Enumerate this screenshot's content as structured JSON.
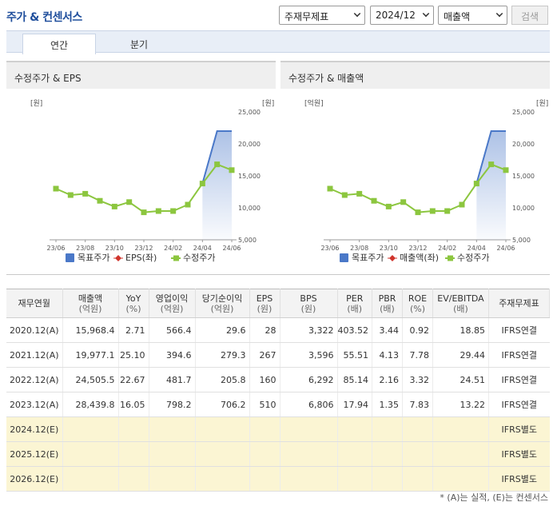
{
  "header": {
    "title": "주가 & 컨센서스",
    "statement_select": "주재무제표",
    "period_select": "2024/12",
    "metric_select": "매출액",
    "search_label": "검색"
  },
  "tabs": [
    {
      "label": "연간",
      "active": true
    },
    {
      "label": "분기",
      "active": false
    }
  ],
  "charts": [
    {
      "title": "수정주가 & EPS",
      "left_unit": "[원]",
      "right_unit": "[원]",
      "legend": [
        "목표주가",
        "EPS(좌)",
        "수정주가"
      ]
    },
    {
      "title": "수정주가 & 매출액",
      "left_unit": "[억원]",
      "right_unit": "[원]",
      "legend": [
        "목표주가",
        "매출액(좌)",
        "수정주가"
      ]
    }
  ],
  "chart_data": [
    {
      "type": "line",
      "title": "수정주가 & EPS",
      "x_ticks": [
        "23/06",
        "23/08",
        "23/10",
        "23/12",
        "24/02",
        "24/04",
        "24/06"
      ],
      "y_right_ticks": [
        "25,000",
        "20,000",
        "15,000",
        "10,000",
        "5,000"
      ],
      "ylim": [
        5000,
        25000
      ],
      "series": [
        {
          "name": "수정주가",
          "values": [
            13000,
            12000,
            12200,
            11100,
            10200,
            10900,
            9300,
            9500,
            9500,
            10500,
            13800,
            16800,
            15900
          ]
        },
        {
          "name": "목표주가",
          "values": [
            null,
            null,
            null,
            null,
            null,
            null,
            null,
            null,
            null,
            null,
            13800,
            22000,
            22000
          ]
        }
      ],
      "legend_position": "bottom",
      "colors": {
        "price": "#8cc63f",
        "target": "#4a78c8",
        "eps": "#d0342c"
      }
    },
    {
      "type": "line",
      "title": "수정주가 & 매출액",
      "x_ticks": [
        "23/06",
        "23/08",
        "23/10",
        "23/12",
        "24/02",
        "24/04",
        "24/06"
      ],
      "y_right_ticks": [
        "25,000",
        "20,000",
        "15,000",
        "10,000",
        "5,000"
      ],
      "ylim": [
        5000,
        25000
      ],
      "series": [
        {
          "name": "수정주가",
          "values": [
            13000,
            12000,
            12200,
            11100,
            10200,
            10900,
            9300,
            9500,
            9500,
            10500,
            13800,
            16800,
            15900
          ]
        },
        {
          "name": "목표주가",
          "values": [
            null,
            null,
            null,
            null,
            null,
            null,
            null,
            null,
            null,
            null,
            13800,
            22000,
            22000
          ]
        }
      ],
      "legend_position": "bottom",
      "colors": {
        "price": "#8cc63f",
        "target": "#4a78c8",
        "sales": "#d0342c"
      }
    }
  ],
  "table": {
    "headers": [
      {
        "label": "재무연월",
        "sub": ""
      },
      {
        "label": "매출액",
        "sub": "(억원)"
      },
      {
        "label": "YoY",
        "sub": "(%)"
      },
      {
        "label": "영업이익",
        "sub": "(억원)"
      },
      {
        "label": "당기순이익",
        "sub": "(억원)"
      },
      {
        "label": "EPS",
        "sub": "(원)"
      },
      {
        "label": "BPS",
        "sub": "(원)"
      },
      {
        "label": "PER",
        "sub": "(배)"
      },
      {
        "label": "PBR",
        "sub": "(배)"
      },
      {
        "label": "ROE",
        "sub": "(%)"
      },
      {
        "label": "EV/EBITDA",
        "sub": "(배)"
      },
      {
        "label": "주재무제표",
        "sub": ""
      }
    ],
    "rows": [
      {
        "estimate": false,
        "cells": [
          "2020.12(A)",
          "15,968.4",
          "2.71",
          "566.4",
          "29.6",
          "28",
          "3,322",
          "403.52",
          "3.44",
          "0.92",
          "18.85",
          "IFRS연결"
        ]
      },
      {
        "estimate": false,
        "cells": [
          "2021.12(A)",
          "19,977.1",
          "25.10",
          "394.6",
          "279.3",
          "267",
          "3,596",
          "55.51",
          "4.13",
          "7.78",
          "29.44",
          "IFRS연결"
        ]
      },
      {
        "estimate": false,
        "cells": [
          "2022.12(A)",
          "24,505.5",
          "22.67",
          "481.7",
          "205.8",
          "160",
          "6,292",
          "85.14",
          "2.16",
          "3.32",
          "24.51",
          "IFRS연결"
        ]
      },
      {
        "estimate": false,
        "cells": [
          "2023.12(A)",
          "28,439.8",
          "16.05",
          "798.2",
          "706.2",
          "510",
          "6,806",
          "17.94",
          "1.35",
          "7.83",
          "13.22",
          "IFRS연결"
        ]
      },
      {
        "estimate": true,
        "cells": [
          "2024.12(E)",
          "",
          "",
          "",
          "",
          "",
          "",
          "",
          "",
          "",
          "",
          "IFRS별도"
        ]
      },
      {
        "estimate": true,
        "cells": [
          "2025.12(E)",
          "",
          "",
          "",
          "",
          "",
          "",
          "",
          "",
          "",
          "",
          "IFRS별도"
        ]
      },
      {
        "estimate": true,
        "cells": [
          "2026.12(E)",
          "",
          "",
          "",
          "",
          "",
          "",
          "",
          "",
          "",
          "",
          "IFRS별도"
        ]
      }
    ]
  },
  "footnote": "* (A)는 실적, (E)는 컨센서스"
}
